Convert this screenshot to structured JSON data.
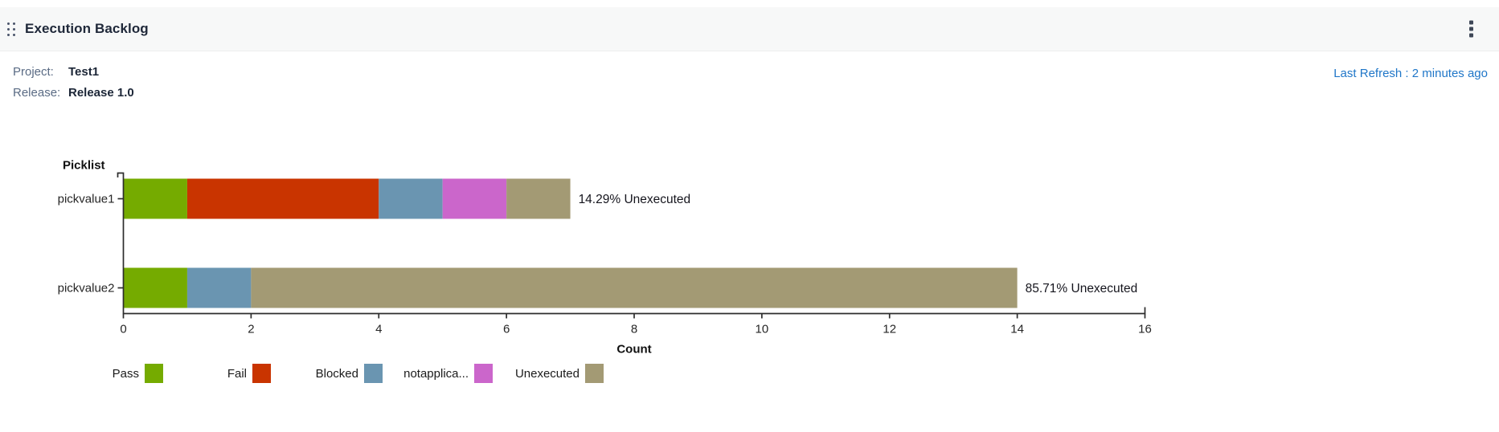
{
  "header": {
    "title": "Execution Backlog",
    "drag_handle_icon": "drag-handle",
    "menu_icon": "kebab-menu"
  },
  "info": {
    "project_label": "Project:",
    "project_value": "Test1",
    "release_label": "Release:",
    "release_value": "Release 1.0",
    "last_refresh": "Last Refresh : 2 minutes ago"
  },
  "colors": {
    "link_blue": "#1f76c8",
    "header_bg": "#f7f8f8",
    "axis": "#2d2d2d",
    "pass_green": "#75AB00",
    "fail_red": "#C93400",
    "blocked_blue": "#6A95B1",
    "notapplicable_magenta": "#CB66CB",
    "unexecuted_tan": "#A39A74"
  },
  "chart_data": {
    "type": "bar",
    "orientation": "horizontal",
    "stacked": true,
    "title": "",
    "ylabel": "Picklist",
    "xlabel": "Count",
    "categories": [
      "pickvalue1",
      "pickvalue2"
    ],
    "series": [
      {
        "name": "Pass",
        "color": "#75AB00",
        "values": [
          1,
          1
        ]
      },
      {
        "name": "Fail",
        "color": "#C93400",
        "values": [
          3,
          0
        ]
      },
      {
        "name": "Blocked",
        "color": "#6A95B1",
        "values": [
          1,
          1
        ]
      },
      {
        "name": "notapplica...",
        "color": "#CB66CB",
        "values": [
          1,
          0
        ]
      },
      {
        "name": "Unexecuted",
        "color": "#A39A74",
        "values": [
          1,
          12
        ]
      }
    ],
    "bar_totals": [
      7,
      14
    ],
    "bar_annotations": [
      "14.29% Unexecuted",
      "85.71% Unexecuted"
    ],
    "xlim": [
      0,
      16
    ],
    "xticks": [
      0,
      2,
      4,
      6,
      8,
      10,
      12,
      14,
      16
    ],
    "grid": false,
    "legend_position": "bottom"
  }
}
